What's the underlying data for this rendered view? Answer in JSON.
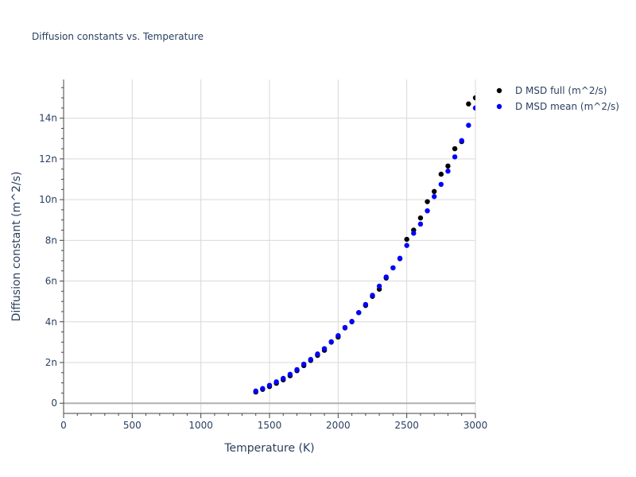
{
  "chart_data": {
    "type": "scatter",
    "title": "Diffusion constants vs. Temperature",
    "xlabel": "Temperature (K)",
    "ylabel": "Diffusion constant (m^2/s)",
    "xlim": [
      0,
      3000
    ],
    "ylim": [
      -0.5,
      15.9
    ],
    "x_ticks": [
      0,
      500,
      1000,
      1500,
      2000,
      2500,
      3000
    ],
    "x_tick_labels": [
      "0",
      "500",
      "1000",
      "1500",
      "2000",
      "2500",
      "3000"
    ],
    "y_ticks": [
      0,
      2,
      4,
      6,
      8,
      10,
      12,
      14
    ],
    "y_tick_labels": [
      "0",
      "2n",
      "4n",
      "6n",
      "8n",
      "10n",
      "12n",
      "14n"
    ],
    "y_unit_scale": "1e-9",
    "legend_position": "top-right",
    "series": [
      {
        "name": "D MSD full (m^2/s)",
        "color": "#000000",
        "x": [
          1400,
          1450,
          1500,
          1550,
          1600,
          1650,
          1700,
          1750,
          1800,
          1850,
          1900,
          1950,
          2000,
          2050,
          2100,
          2150,
          2200,
          2250,
          2300,
          2350,
          2400,
          2450,
          2500,
          2550,
          2600,
          2650,
          2700,
          2750,
          2800,
          2850,
          2900,
          2950,
          3000
        ],
        "y": [
          0.55,
          0.68,
          0.82,
          0.98,
          1.15,
          1.35,
          1.6,
          1.85,
          2.1,
          2.35,
          2.6,
          3.0,
          3.25,
          3.7,
          4.0,
          4.45,
          4.8,
          5.25,
          5.6,
          6.15,
          6.65,
          7.1,
          8.05,
          8.5,
          9.1,
          9.9,
          10.4,
          11.25,
          11.65,
          12.5,
          12.85,
          14.7,
          15.0
        ]
      },
      {
        "name": "D MSD mean (m^2/s)",
        "color": "#0000ff",
        "x": [
          1400,
          1450,
          1500,
          1550,
          1600,
          1650,
          1700,
          1750,
          1800,
          1850,
          1900,
          1950,
          2000,
          2050,
          2100,
          2150,
          2200,
          2250,
          2300,
          2350,
          2400,
          2450,
          2500,
          2550,
          2600,
          2650,
          2700,
          2750,
          2800,
          2850,
          2900,
          2950,
          3000
        ],
        "y": [
          0.6,
          0.72,
          0.88,
          1.05,
          1.22,
          1.42,
          1.65,
          1.92,
          2.15,
          2.42,
          2.68,
          3.02,
          3.32,
          3.72,
          4.02,
          4.45,
          4.85,
          5.3,
          5.75,
          6.2,
          6.65,
          7.12,
          7.75,
          8.35,
          8.8,
          9.45,
          10.15,
          10.75,
          11.4,
          12.1,
          12.9,
          13.65,
          14.5
        ]
      }
    ]
  }
}
